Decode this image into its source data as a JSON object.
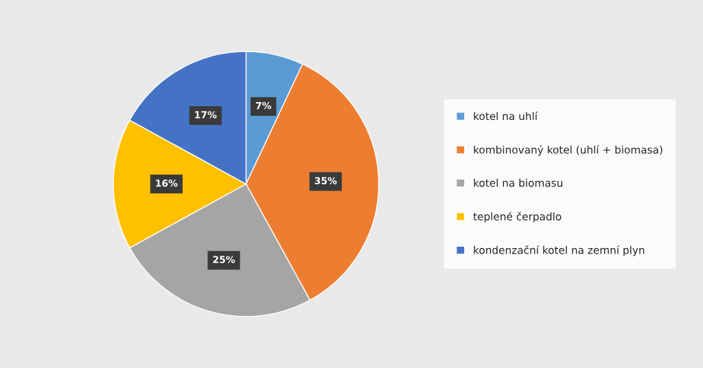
{
  "chart_data": {
    "type": "pie",
    "categories": [
      "kotel na uhlí",
      "kombinovaný kotel (uhlí + biomasa)",
      "kotel na biomasu",
      "teplené čerpadlo",
      "kondenzační kotel na zemní plyn"
    ],
    "values": [
      7,
      35,
      25,
      16,
      17
    ],
    "colors": [
      "#5b9bd5",
      "#ed7d31",
      "#a5a5a5",
      "#ffc000",
      "#4472c4"
    ],
    "value_labels": [
      "7%",
      "35%",
      "25%",
      "16%",
      "17%"
    ],
    "legend": "right"
  }
}
